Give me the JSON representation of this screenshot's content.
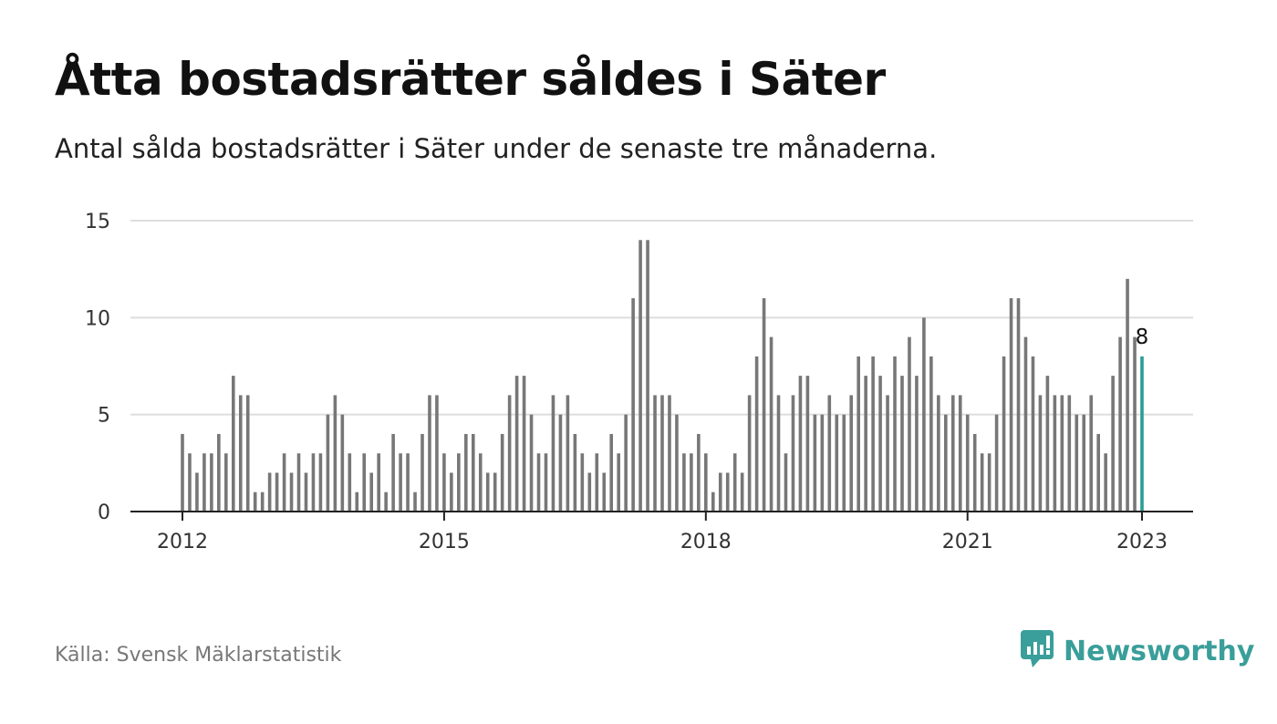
{
  "header": {
    "title": "Åtta bostadsrätter såldes i Säter",
    "subtitle": "Antal sålda bostadsrätter i Säter under de senaste tre månaderna."
  },
  "footer": {
    "source": "Källa: Svensk Mäklarstatistik",
    "brand": "Newsworthy"
  },
  "colors": {
    "bar": "#777777",
    "highlight": "#2a9d96",
    "grid": "#dddddd",
    "axis": "#222222",
    "brand": "#3a9e9a"
  },
  "icons": {
    "brand_logo": "newsworthy-logo-icon"
  },
  "chart_data": {
    "type": "bar",
    "title": "Åtta bostadsrätter såldes i Säter",
    "subtitle": "Antal sålda bostadsrätter i Säter under de senaste tre månaderna.",
    "xlabel": "",
    "ylabel": "",
    "ylim": [
      0,
      15
    ],
    "yticks": [
      0,
      5,
      10,
      15
    ],
    "grid": true,
    "x_start": "2012-01",
    "x_end": "2023-01",
    "xtick_labels": [
      "2012",
      "2015",
      "2018",
      "2021",
      "2023"
    ],
    "xtick_months": [
      "2012-01",
      "2015-01",
      "2018-01",
      "2021-01",
      "2023-01"
    ],
    "values": [
      4,
      3,
      2,
      3,
      3,
      4,
      3,
      7,
      6,
      6,
      1,
      1,
      2,
      2,
      3,
      2,
      3,
      2,
      3,
      3,
      5,
      6,
      5,
      3,
      1,
      3,
      2,
      3,
      1,
      4,
      3,
      3,
      1,
      4,
      6,
      6,
      3,
      2,
      3,
      4,
      4,
      3,
      2,
      2,
      4,
      6,
      7,
      7,
      5,
      3,
      3,
      6,
      5,
      6,
      4,
      3,
      2,
      3,
      2,
      4,
      3,
      5,
      11,
      14,
      14,
      6,
      6,
      6,
      5,
      3,
      3,
      4,
      3,
      1,
      2,
      2,
      3,
      2,
      6,
      8,
      11,
      9,
      6,
      3,
      6,
      7,
      7,
      5,
      5,
      6,
      5,
      5,
      6,
      8,
      7,
      8,
      7,
      6,
      8,
      7,
      9,
      7,
      10,
      8,
      6,
      5,
      6,
      6,
      5,
      4,
      3,
      3,
      5,
      8,
      11,
      11,
      9,
      8,
      6,
      7,
      6,
      6,
      6,
      5,
      5,
      6,
      4,
      3,
      7,
      9,
      12,
      9,
      8
    ],
    "highlight_last": true,
    "data_labels": [
      {
        "index": 132,
        "text": "8"
      }
    ]
  }
}
